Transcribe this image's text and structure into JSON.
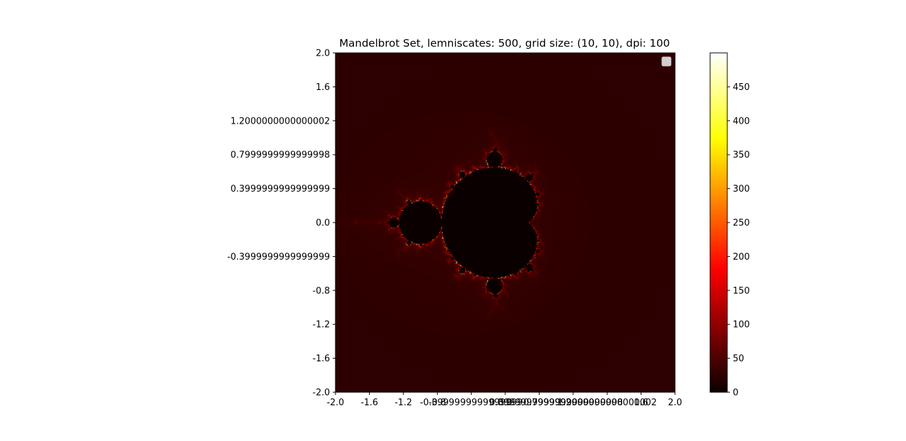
{
  "chart_data": {
    "type": "heatmap",
    "title": "Mandelbrot Set, lemniscates: 500, grid size: (10, 10), dpi: 100",
    "xlabel": "",
    "ylabel": "",
    "xlim": [
      -2.0,
      2.0
    ],
    "ylim": [
      -2.0,
      2.0
    ],
    "x_ticks": [
      -2.0,
      -1.6,
      -1.2,
      -0.8,
      -0.4,
      0.0,
      0.4,
      0.8,
      1.2,
      1.6,
      2.0
    ],
    "x_tick_labels": [
      "-2.0",
      "-1.6",
      "-1.2",
      "-0.8",
      "-0.3999999999999999",
      "0.0",
      "0.3999999999999999",
      "0.7999999999999998",
      "1.2000000000000002",
      "1.6",
      "2.0"
    ],
    "y_ticks": [
      2.0,
      1.6,
      1.2,
      0.8,
      0.4,
      0.0,
      -0.4,
      -0.8,
      -1.2,
      -1.6,
      -2.0
    ],
    "y_tick_labels": [
      "2.0",
      "1.6",
      "1.2000000000000002",
      "0.7999999999999998",
      "0.3999999999999999",
      "0.0",
      "-0.3999999999999999",
      "-0.8",
      "-1.2",
      "-1.6",
      "-2.0"
    ],
    "max_iterations": 500,
    "colormap": "hot",
    "colorbar": {
      "range": [
        0,
        500
      ],
      "ticks": [
        0,
        50,
        100,
        150,
        200,
        250,
        300,
        350,
        400,
        450
      ],
      "tick_labels": [
        "0",
        "50",
        "100",
        "150",
        "200",
        "250",
        "300",
        "350",
        "400",
        "450"
      ]
    },
    "legend": {
      "placement": "top-right",
      "entries": []
    },
    "grid": false
  }
}
